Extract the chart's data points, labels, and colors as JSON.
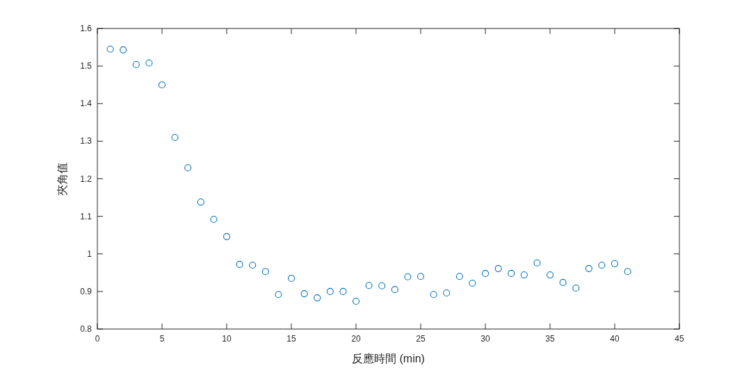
{
  "chart_data": {
    "type": "scatter",
    "xlabel": "反應時間 (min)",
    "ylabel": "夾角值",
    "marker": "circle",
    "color": "#0072bd",
    "x": [
      1,
      2,
      3,
      4,
      5,
      6,
      7,
      8,
      9,
      10,
      11,
      12,
      13,
      14,
      15,
      16,
      17,
      18,
      19,
      20,
      21,
      22,
      23,
      24,
      25,
      26,
      27,
      28,
      29,
      30,
      31,
      32,
      33,
      34,
      35,
      36,
      37,
      38,
      39,
      40,
      41
    ],
    "values": [
      1.545,
      1.543,
      1.504,
      1.508,
      1.45,
      1.31,
      1.229,
      1.138,
      1.092,
      1.046,
      0.972,
      0.97,
      0.953,
      0.892,
      0.935,
      0.894,
      0.883,
      0.9,
      0.9,
      0.874,
      0.916,
      0.915,
      0.905,
      0.939,
      0.94,
      0.892,
      0.896,
      0.94,
      0.922,
      0.948,
      0.961,
      0.948,
      0.944,
      0.976,
      0.944,
      0.924,
      0.909,
      0.961,
      0.97,
      0.974,
      0.953
    ],
    "xlim": [
      0,
      45
    ],
    "ylim": [
      0.8,
      1.6
    ],
    "xticks": [
      0,
      5,
      10,
      15,
      20,
      25,
      30,
      35,
      40,
      45
    ],
    "yticks": [
      0.8,
      0.9,
      1,
      1.1,
      1.2,
      1.3,
      1.4,
      1.5,
      1.6
    ]
  }
}
